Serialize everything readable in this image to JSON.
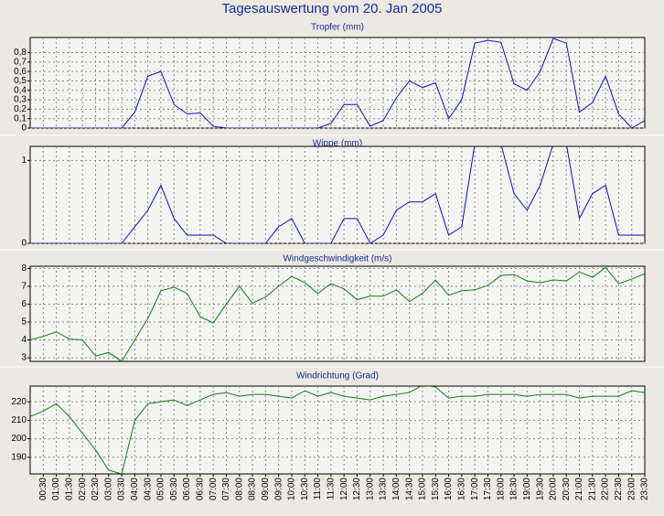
{
  "title": "Tagesauswertung vom 20. Jan 2005",
  "chart_data": [
    {
      "type": "line",
      "title": "Tropfer (mm)",
      "color": "#1010c0",
      "values": [
        0,
        0,
        0,
        0,
        0,
        0,
        0,
        0,
        0.17,
        0.55,
        0.6,
        0.25,
        0.15,
        0.16,
        0.02,
        0,
        0,
        0,
        0,
        0,
        0,
        0,
        0,
        0.05,
        0.25,
        0.25,
        0.02,
        0.08,
        0.32,
        0.5,
        0.43,
        0.48,
        0.1,
        0.3,
        0.9,
        0.93,
        0.91,
        0.47,
        0.4,
        0.6,
        0.95,
        0.9,
        0.17,
        0.27,
        0.55,
        0.15,
        0,
        0.08
      ],
      "ylim": [
        0,
        0.96
      ],
      "yticks": [
        0,
        {
          "value": 0.1,
          "label": "0,1"
        },
        {
          "value": 0.2,
          "label": "0,2"
        },
        {
          "value": 0.3,
          "label": "0,3"
        },
        {
          "value": 0.4,
          "label": "0,4"
        },
        {
          "value": 0.5,
          "label": "0,5"
        },
        {
          "value": 0.6,
          "label": "0,6"
        },
        {
          "value": 0.7,
          "label": "0,7"
        },
        {
          "value": 0.8,
          "label": "0,8"
        }
      ],
      "grid": true
    },
    {
      "type": "line",
      "title": "Wippe (mm)",
      "color": "#1010c0",
      "values": [
        0,
        0,
        0,
        0,
        0,
        0,
        0,
        0,
        0.2,
        0.4,
        0.7,
        0.3,
        0.1,
        0.1,
        0.1,
        0,
        0,
        0,
        0,
        0.2,
        0.3,
        0,
        0,
        0,
        0.3,
        0.3,
        0,
        0.1,
        0.4,
        0.5,
        0.5,
        0.6,
        0.1,
        0.2,
        1.2,
        1.2,
        1.2,
        0.6,
        0.4,
        0.7,
        1.2,
        1.2,
        0.3,
        0.6,
        0.7,
        0.1,
        0.1,
        0.1
      ],
      "ylim": [
        0,
        1.17
      ],
      "yticks": [
        0,
        1
      ],
      "grid": true
    },
    {
      "type": "line",
      "title": "Windgeschwindigkeit (m/s)",
      "color": "#108010",
      "values": [
        4.0,
        4.2,
        4.45,
        4.05,
        4.0,
        3.1,
        3.3,
        2.8,
        4.0,
        5.2,
        6.75,
        6.95,
        6.6,
        5.3,
        4.95,
        6.0,
        7.0,
        6.05,
        6.4,
        7.0,
        7.55,
        7.2,
        6.6,
        7.15,
        6.85,
        6.25,
        6.45,
        6.45,
        6.8,
        6.15,
        6.6,
        7.35,
        6.5,
        6.75,
        6.8,
        7.05,
        7.6,
        7.65,
        7.3,
        7.2,
        7.35,
        7.3,
        7.8,
        7.5,
        8.05,
        7.15,
        7.4,
        7.7
      ],
      "ylim": [
        2.8,
        8.12
      ],
      "yticks": [
        3,
        4,
        5,
        6,
        7,
        8
      ],
      "grid": true
    },
    {
      "type": "line",
      "title": "Windrichtung (Grad)",
      "color": "#108010",
      "categories": [
        null,
        "00:30",
        "01:00",
        "01:30",
        "02:00",
        "02:30",
        "03:00",
        "03:30",
        "04:00",
        "04:30",
        "05:00",
        "05:30",
        "06:00",
        "06:30",
        "07:00",
        "07:30",
        "08:00",
        "08:30",
        "09:00",
        "09:30",
        "10:00",
        "10:30",
        "11:00",
        "11:30",
        "12:00",
        "12:30",
        "13:00",
        "13:30",
        "14:00",
        "14:30",
        "15:00",
        "15:30",
        "16:00",
        "16:30",
        "17:00",
        "17:30",
        "18:00",
        "18:30",
        "19:00",
        "19:30",
        "20:00",
        "20:30",
        "21:00",
        "21:30",
        "22:00",
        "22:30",
        "23:00",
        "23:30"
      ],
      "values": [
        212,
        215,
        219,
        212,
        203,
        194,
        183,
        181,
        210,
        219,
        220,
        221,
        218,
        221,
        224,
        225,
        223,
        224,
        224,
        223,
        222,
        226,
        223,
        225,
        223,
        222,
        221,
        223,
        224,
        225,
        229,
        228,
        222,
        223,
        223,
        224,
        224,
        224,
        223,
        224,
        224,
        224,
        222,
        223,
        223,
        223,
        226,
        225
      ],
      "ylim": [
        181,
        228.5
      ],
      "yticks": [
        190,
        200,
        210,
        220
      ],
      "grid": true
    }
  ]
}
